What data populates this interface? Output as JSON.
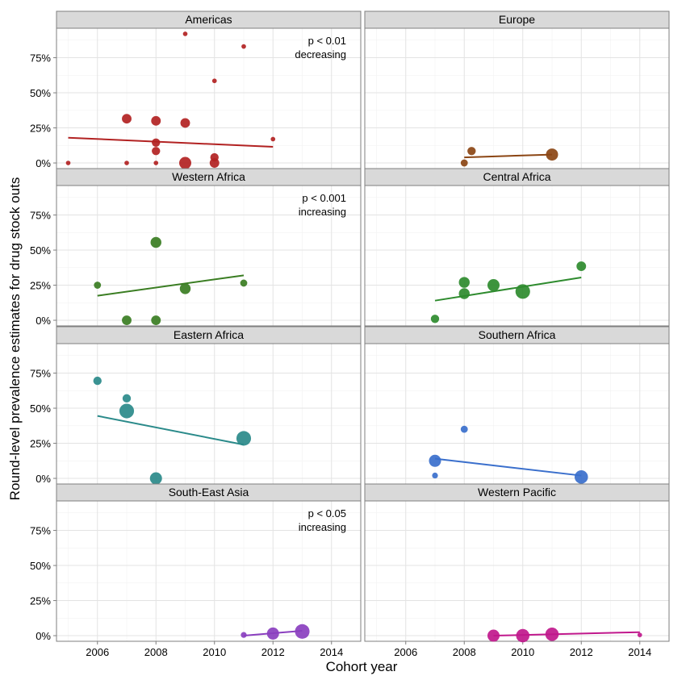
{
  "figure": {
    "xlabel": "Cohort year",
    "ylabel": "Round-level prevalence estimates for drug stock outs"
  },
  "chart_data": {
    "type": "scatter",
    "layout": "facet-grid 4 rows x 2 columns",
    "xlabel": "Cohort year",
    "ylabel": "Round-level prevalence estimates for drug stock outs",
    "xlim": [
      2004.6,
      2015.0
    ],
    "ylim": [
      -4,
      96
    ],
    "xticks": [
      2006,
      2008,
      2010,
      2012,
      2014
    ],
    "xtick_labels": [
      "2006",
      "2008",
      "2010",
      "2012",
      "2014"
    ],
    "yticks": [
      0,
      25,
      50,
      75
    ],
    "ytick_labels": [
      "0%",
      "25%",
      "50%",
      "75%"
    ],
    "y_unit": "percent",
    "grid": true,
    "background": "white with light grey gridlines",
    "strip_color": "#d9d9d9",
    "panels": [
      {
        "name": "Americas",
        "color": "#b22222",
        "annotation": [
          "p < 0.01",
          "decreasing"
        ],
        "trend": [
          [
            2005,
            18
          ],
          [
            2012,
            11.5
          ]
        ],
        "points": [
          {
            "x": 2005,
            "y": 0,
            "w": 1
          },
          {
            "x": 2007,
            "y": 0,
            "w": 1
          },
          {
            "x": 2008,
            "y": 0,
            "w": 1
          },
          {
            "x": 2007,
            "y": 31.5,
            "w": 3
          },
          {
            "x": 2008,
            "y": 30,
            "w": 3
          },
          {
            "x": 2008,
            "y": 14.5,
            "w": 2.5
          },
          {
            "x": 2008,
            "y": 8.5,
            "w": 2.5
          },
          {
            "x": 2009,
            "y": 28.5,
            "w": 3
          },
          {
            "x": 2009,
            "y": 0,
            "w": 4
          },
          {
            "x": 2009,
            "y": 92,
            "w": 1
          },
          {
            "x": 2010,
            "y": 4,
            "w": 2.5
          },
          {
            "x": 2010,
            "y": 0,
            "w": 3
          },
          {
            "x": 2010,
            "y": 58.5,
            "w": 1
          },
          {
            "x": 2011,
            "y": 83,
            "w": 1
          },
          {
            "x": 2012,
            "y": 17,
            "w": 1
          }
        ]
      },
      {
        "name": "Europe",
        "color": "#8b4513",
        "annotation": [],
        "trend": [
          [
            2008,
            4
          ],
          [
            2011,
            6
          ]
        ],
        "points": [
          {
            "x": 2008,
            "y": 0,
            "w": 2
          },
          {
            "x": 2008.25,
            "y": 8.5,
            "w": 2.5
          },
          {
            "x": 2011,
            "y": 6,
            "w": 4
          }
        ]
      },
      {
        "name": "Western Africa",
        "color": "#3a7d22",
        "annotation": [
          "p < 0.001",
          "increasing"
        ],
        "trend": [
          [
            2006,
            17.5
          ],
          [
            2011,
            32
          ]
        ],
        "points": [
          {
            "x": 2006,
            "y": 25,
            "w": 2
          },
          {
            "x": 2007,
            "y": 0,
            "w": 3
          },
          {
            "x": 2008,
            "y": 0,
            "w": 3
          },
          {
            "x": 2008,
            "y": 55.5,
            "w": 3.5
          },
          {
            "x": 2009,
            "y": 22.5,
            "w": 3.5
          },
          {
            "x": 2011,
            "y": 26.5,
            "w": 2
          }
        ]
      },
      {
        "name": "Central Africa",
        "color": "#2e8b2e",
        "annotation": [],
        "trend": [
          [
            2007,
            14
          ],
          [
            2012,
            30.5
          ]
        ],
        "points": [
          {
            "x": 2007,
            "y": 1,
            "w": 2.5
          },
          {
            "x": 2008,
            "y": 27,
            "w": 3.5
          },
          {
            "x": 2008,
            "y": 19,
            "w": 3.5
          },
          {
            "x": 2009,
            "y": 25,
            "w": 4
          },
          {
            "x": 2010,
            "y": 20.5,
            "w": 5
          },
          {
            "x": 2012,
            "y": 38.5,
            "w": 3
          }
        ]
      },
      {
        "name": "Eastern Africa",
        "color": "#2a8a8a",
        "annotation": [],
        "trend": [
          [
            2006,
            44.5
          ],
          [
            2011,
            24
          ]
        ],
        "points": [
          {
            "x": 2006,
            "y": 69.5,
            "w": 2.5
          },
          {
            "x": 2007,
            "y": 57,
            "w": 2.5
          },
          {
            "x": 2007,
            "y": 48,
            "w": 5
          },
          {
            "x": 2008,
            "y": 0,
            "w": 4
          },
          {
            "x": 2011,
            "y": 28.5,
            "w": 5
          }
        ]
      },
      {
        "name": "Southern Africa",
        "color": "#3a6fcc",
        "annotation": [],
        "trend": [
          [
            2007,
            14
          ],
          [
            2012,
            2
          ]
        ],
        "points": [
          {
            "x": 2007,
            "y": 12.5,
            "w": 4
          },
          {
            "x": 2007,
            "y": 2,
            "w": 1.5
          },
          {
            "x": 2008,
            "y": 35,
            "w": 2
          },
          {
            "x": 2012,
            "y": 1,
            "w": 4.5
          }
        ]
      },
      {
        "name": "South-East Asia",
        "color": "#8a3fbf",
        "annotation": [
          "p < 0.05",
          "increasing"
        ],
        "trend": [
          [
            2011,
            0
          ],
          [
            2013,
            3.5
          ]
        ],
        "points": [
          {
            "x": 2011,
            "y": 0.5,
            "w": 1.5
          },
          {
            "x": 2012,
            "y": 1.5,
            "w": 4
          },
          {
            "x": 2013,
            "y": 3,
            "w": 5
          }
        ]
      },
      {
        "name": "Western Pacific",
        "color": "#c0188c",
        "annotation": [],
        "trend": [
          [
            2009,
            0
          ],
          [
            2014,
            2.5
          ]
        ],
        "points": [
          {
            "x": 2009,
            "y": 0,
            "w": 4
          },
          {
            "x": 2010,
            "y": 0,
            "w": 4.5
          },
          {
            "x": 2011,
            "y": 1,
            "w": 4.5
          },
          {
            "x": 2014,
            "y": 0.5,
            "w": 1
          }
        ]
      }
    ]
  }
}
